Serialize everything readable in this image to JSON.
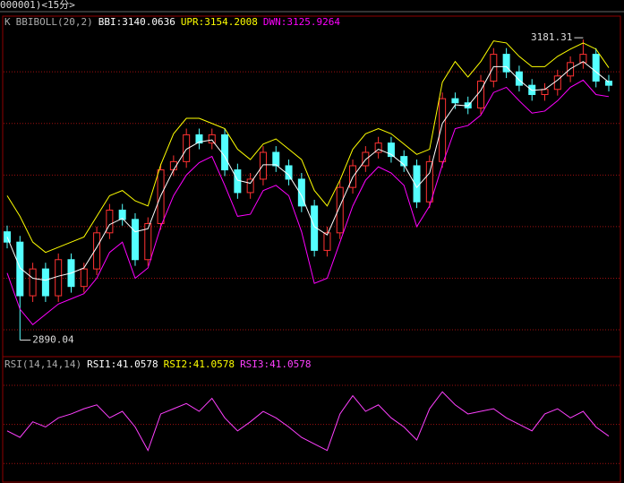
{
  "header": {
    "title": "000001)<15分>"
  },
  "chart_data": [
    {
      "type": "candlestick",
      "title": "K",
      "subtitle": "BBIBOLL(20,2)",
      "up_color": "#ff3232",
      "down_color": "#54ffff",
      "ylim": [
        2874,
        3204
      ],
      "grid_values": [
        2900,
        2950,
        3000,
        3050,
        3100,
        3150
      ],
      "open": [
        2995,
        2985,
        2933,
        2959,
        2933,
        2968,
        2942,
        2959,
        2994,
        3016,
        3007,
        2968,
        3003,
        3055,
        3063,
        3089,
        3081,
        3089,
        3055,
        3033,
        3046,
        3072,
        3059,
        3046,
        3020,
        2977,
        2994,
        3038,
        3059,
        3072,
        3081,
        3068,
        3059,
        3024,
        3063,
        3124,
        3120,
        3115,
        3141,
        3167,
        3150,
        3137,
        3128,
        3133,
        3146,
        3159,
        3167,
        3141
      ],
      "high": [
        3001,
        2991,
        2965,
        2965,
        2974,
        2974,
        2965,
        3000,
        3022,
        3022,
        3013,
        3009,
        3061,
        3069,
        3095,
        3095,
        3095,
        3095,
        3061,
        3052,
        3078,
        3078,
        3065,
        3052,
        3026,
        3000,
        3044,
        3065,
        3078,
        3087,
        3087,
        3074,
        3065,
        3069,
        3130,
        3130,
        3126,
        3147,
        3173,
        3173,
        3156,
        3143,
        3139,
        3152,
        3165,
        3181.31,
        3173,
        3147
      ],
      "low": [
        2979,
        2890.04,
        2927,
        2927,
        2927,
        2936,
        2936,
        2953,
        2988,
        3001,
        2962,
        2962,
        2997,
        3049,
        3057,
        3075,
        3075,
        3049,
        3027,
        3027,
        3040,
        3053,
        3040,
        3014,
        2971,
        2971,
        2988,
        3032,
        3053,
        3066,
        3062,
        3053,
        3018,
        3018,
        3057,
        3114,
        3109,
        3109,
        3135,
        3144,
        3131,
        3122,
        3122,
        3127,
        3140,
        3153,
        3135,
        3131
      ],
      "close": [
        2985,
        2933,
        2959,
        2933,
        2968,
        2942,
        2959,
        2994,
        3016,
        3007,
        2968,
        3003,
        3055,
        3063,
        3089,
        3081,
        3089,
        3055,
        3033,
        3046,
        3072,
        3059,
        3046,
        3020,
        2977,
        2994,
        3038,
        3059,
        3072,
        3081,
        3068,
        3059,
        3024,
        3063,
        3124,
        3120,
        3115,
        3141,
        3167,
        3150,
        3137,
        3128,
        3133,
        3146,
        3159,
        3167,
        3141,
        3137
      ],
      "series": [
        {
          "name": "BBI:3140.0636",
          "color": "#ffffff",
          "values": [
            2990,
            2960,
            2950,
            2948,
            2952,
            2955,
            2960,
            2980,
            3002,
            3008,
            2995,
            2998,
            3030,
            3055,
            3075,
            3082,
            3084,
            3068,
            3045,
            3042,
            3060,
            3060,
            3050,
            3030,
            3000,
            2992,
            3020,
            3048,
            3065,
            3075,
            3070,
            3060,
            3038,
            3052,
            3100,
            3118,
            3117,
            3132,
            3155,
            3155,
            3142,
            3132,
            3133,
            3142,
            3153,
            3160,
            3150,
            3140
          ]
        },
        {
          "name": "UPR:3154.2008",
          "color": "#ffff00",
          "values": [
            3030,
            3010,
            2985,
            2975,
            2980,
            2985,
            2990,
            3010,
            3030,
            3035,
            3025,
            3020,
            3060,
            3090,
            3105,
            3105,
            3100,
            3095,
            3075,
            3065,
            3080,
            3085,
            3075,
            3065,
            3035,
            3020,
            3045,
            3075,
            3090,
            3095,
            3090,
            3080,
            3070,
            3075,
            3140,
            3160,
            3145,
            3160,
            3180,
            3178,
            3165,
            3155,
            3155,
            3165,
            3172,
            3178,
            3172,
            3154
          ]
        },
        {
          "name": "DWN:3125.9264",
          "color": "#ff00ff",
          "values": [
            2955,
            2920,
            2905,
            2915,
            2925,
            2930,
            2935,
            2950,
            2975,
            2985,
            2950,
            2960,
            3000,
            3030,
            3050,
            3062,
            3068,
            3040,
            3010,
            3012,
            3035,
            3040,
            3030,
            2995,
            2945,
            2950,
            2985,
            3020,
            3045,
            3058,
            3052,
            3040,
            3000,
            3020,
            3060,
            3095,
            3098,
            3108,
            3130,
            3135,
            3122,
            3110,
            3112,
            3122,
            3135,
            3142,
            3128,
            3126
          ]
        }
      ]
    },
    {
      "type": "line",
      "title": "RSI(14,14,14)",
      "ylim": [
        5,
        102
      ],
      "grid_values": [
        20,
        50,
        80
      ],
      "series": [
        {
          "name": "RSI1:41.0578",
          "color": "#ffffff"
        },
        {
          "name": "RSI2:41.0578",
          "color": "#ffff00"
        },
        {
          "name": "RSI3:41.0578",
          "color": "#ff40ff",
          "values": [
            45,
            40,
            52,
            48,
            55,
            58,
            62,
            65,
            55,
            60,
            48,
            30,
            58,
            62,
            66,
            60,
            70,
            55,
            45,
            52,
            60,
            55,
            48,
            40,
            35,
            30,
            58,
            72,
            60,
            65,
            55,
            48,
            38,
            62,
            75,
            65,
            58,
            60,
            62,
            55,
            50,
            45,
            58,
            62,
            55,
            60,
            48,
            41
          ]
        }
      ]
    }
  ]
}
